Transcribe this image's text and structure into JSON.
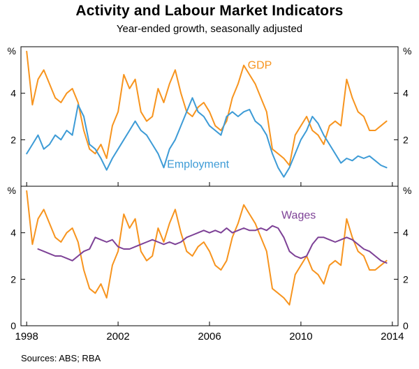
{
  "title": "Activity and Labour Market Indicators",
  "subtitle": "Year-ended growth, seasonally adjusted",
  "sources": "Sources:  ABS; RBA",
  "x_axis": {
    "ticks": [
      1998,
      2002,
      2006,
      2010,
      2014
    ]
  },
  "chart_data": [
    {
      "type": "line",
      "panel": "top",
      "x_start": 1998.0,
      "x_step": 0.25,
      "xlim": [
        1997.75,
        2014.25
      ],
      "ylim": [
        0,
        6
      ],
      "yticks": [
        2,
        4
      ],
      "unit_label": "%",
      "series": [
        {
          "name": "GDP",
          "color": "#F7941E",
          "values": [
            5.8,
            3.5,
            4.6,
            5.0,
            4.4,
            3.8,
            3.6,
            4.0,
            4.2,
            3.6,
            2.4,
            1.6,
            1.4,
            1.8,
            1.2,
            2.6,
            3.2,
            4.8,
            4.2,
            4.6,
            3.2,
            2.8,
            3.0,
            4.2,
            3.6,
            4.4,
            5.0,
            4.0,
            3.2,
            3.0,
            3.4,
            3.6,
            3.2,
            2.6,
            2.4,
            2.8,
            3.8,
            4.4,
            5.2,
            4.8,
            4.4,
            3.8,
            3.2,
            1.6,
            1.4,
            1.2,
            0.9,
            2.2,
            2.6,
            3.0,
            2.4,
            2.2,
            1.8,
            2.6,
            2.8,
            2.6,
            4.6,
            3.8,
            3.2,
            3.0,
            2.4,
            2.4,
            2.6,
            2.8
          ]
        },
        {
          "name": "Employment",
          "color": "#3D9BD6",
          "values": [
            1.4,
            1.8,
            2.2,
            1.6,
            1.8,
            2.2,
            2.0,
            2.4,
            2.2,
            3.5,
            3.0,
            1.8,
            1.6,
            1.2,
            0.7,
            1.2,
            1.6,
            2.0,
            2.4,
            2.8,
            2.4,
            2.2,
            1.8,
            1.4,
            0.8,
            1.6,
            2.0,
            2.6,
            3.2,
            3.8,
            3.2,
            3.0,
            2.6,
            2.4,
            2.2,
            3.0,
            3.2,
            3.0,
            3.2,
            3.3,
            2.8,
            2.6,
            2.2,
            1.4,
            0.8,
            0.4,
            0.8,
            1.4,
            2.0,
            2.4,
            3.0,
            2.7,
            2.2,
            1.8,
            1.4,
            1.0,
            1.2,
            1.1,
            1.3,
            1.2,
            1.3,
            1.1,
            0.9,
            0.8
          ]
        }
      ],
      "annotations": [
        {
          "text": "GDP",
          "x": 2008.2,
          "y": 5.05,
          "color": "#F7941E"
        },
        {
          "text": "Employment",
          "x": 2005.5,
          "y": 0.8,
          "color": "#3D9BD6"
        }
      ]
    },
    {
      "type": "line",
      "panel": "bottom",
      "x_start": 1998.0,
      "x_step": 0.25,
      "xlim": [
        1997.75,
        2014.25
      ],
      "ylim": [
        0,
        6
      ],
      "yticks": [
        0,
        2,
        4
      ],
      "unit_label": "%",
      "series": [
        {
          "name": "GDP",
          "color": "#F7941E",
          "values": [
            5.8,
            3.5,
            4.6,
            5.0,
            4.4,
            3.8,
            3.6,
            4.0,
            4.2,
            3.6,
            2.4,
            1.6,
            1.4,
            1.8,
            1.2,
            2.6,
            3.2,
            4.8,
            4.2,
            4.6,
            3.2,
            2.8,
            3.0,
            4.2,
            3.6,
            4.4,
            5.0,
            4.0,
            3.2,
            3.0,
            3.4,
            3.6,
            3.2,
            2.6,
            2.4,
            2.8,
            3.8,
            4.4,
            5.2,
            4.8,
            4.4,
            3.8,
            3.2,
            1.6,
            1.4,
            1.2,
            0.9,
            2.2,
            2.6,
            3.0,
            2.4,
            2.2,
            1.8,
            2.6,
            2.8,
            2.6,
            4.6,
            3.8,
            3.2,
            3.0,
            2.4,
            2.4,
            2.6,
            2.8
          ]
        },
        {
          "name": "Wages",
          "color": "#7D4196",
          "values": [
            null,
            null,
            3.3,
            3.2,
            3.1,
            3.0,
            3.0,
            2.9,
            2.8,
            3.0,
            3.2,
            3.3,
            3.8,
            3.7,
            3.6,
            3.7,
            3.4,
            3.3,
            3.3,
            3.4,
            3.5,
            3.6,
            3.7,
            3.6,
            3.5,
            3.6,
            3.5,
            3.6,
            3.8,
            3.9,
            4.0,
            4.1,
            4.0,
            4.1,
            4.0,
            4.2,
            4.0,
            4.1,
            4.2,
            4.1,
            4.1,
            4.2,
            4.1,
            4.3,
            4.2,
            3.8,
            3.2,
            3.0,
            2.9,
            3.0,
            3.5,
            3.8,
            3.8,
            3.7,
            3.6,
            3.7,
            3.8,
            3.7,
            3.5,
            3.3,
            3.2,
            3.0,
            2.8,
            2.7
          ]
        }
      ],
      "annotations": [
        {
          "text": "Wages",
          "x": 2009.9,
          "y": 4.6,
          "color": "#7D4196"
        }
      ]
    }
  ]
}
